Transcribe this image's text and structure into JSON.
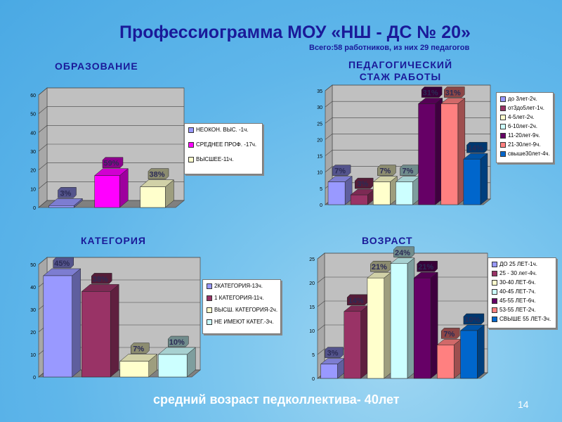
{
  "title": "Профессиограмма МОУ «НШ - ДС № 20»",
  "subtitle": "Всего:58 работников, из них 29 педагогов",
  "footer": "средний возраст педколлектива- 40лет",
  "page_number": "14",
  "chart_data": [
    {
      "id": "education",
      "type": "bar",
      "title": "ОБРАЗОВАНИЕ",
      "categories": [
        "НЕОКОНЧ. ВЫС. -1ч.",
        "СРЕДНЕЕ ПРОФ. -17ч.",
        "ВЫСШЕЕ-11ч."
      ],
      "values": [
        1,
        17,
        11
      ],
      "labels": [
        "3%",
        "59%",
        "38%"
      ],
      "colors": [
        "#9999ff",
        "#ff00ff",
        "#ffffcc"
      ],
      "ylim": [
        0,
        60
      ],
      "yticks": [
        "0",
        "10",
        "20",
        "30",
        "40",
        "50",
        "60"
      ],
      "legend": [
        "НЕОКОН. ВЫС. -1ч.",
        "СРЕДНЕЕ ПРОФ. -17ч.",
        "ВЫСШЕЕ-11ч."
      ],
      "grid": true,
      "legend_position": "right"
    },
    {
      "id": "experience",
      "type": "bar",
      "title": "ПЕДАГОГИЧЕСКИЙ СТАЖ РАБОТЫ",
      "categories": [
        "до 3лет-2ч.",
        "от3до5лет-1ч.",
        "4-5лет-2ч.",
        "6-10лет-2ч.",
        "11-20лет-9ч.",
        "21-30лет-9ч.",
        "свыше30лет-4ч."
      ],
      "values": [
        7,
        3,
        7,
        7,
        31,
        31,
        14
      ],
      "labels": [
        "7%",
        "3%",
        "7%",
        "7%",
        "31%",
        "31%",
        "14%"
      ],
      "colors": [
        "#9999ff",
        "#993366",
        "#ffffcc",
        "#ccffff",
        "#660066",
        "#ff8080",
        "#0066cc"
      ],
      "ylim": [
        0,
        35
      ],
      "yticks": [
        "0",
        "5",
        "10",
        "15",
        "20",
        "25",
        "30",
        "35"
      ],
      "legend": [
        "до 3лет-2ч.",
        "от3до5лет-1ч.",
        "4-5лет-2ч.",
        "6-10лет-2ч.",
        "11-20лет-9ч.",
        "21-30лет-9ч.",
        "свыше30лет-4ч."
      ],
      "grid": true,
      "legend_position": "right"
    },
    {
      "id": "category",
      "type": "bar",
      "title": "КАТЕГОРИЯ",
      "categories": [
        "2КАТЕГОРИЯ-13ч.",
        "1 КАТЕГОРИЯ-11ч.",
        "ВЫСШ. КАТЕГОРИЯ-2ч.",
        "НЕ ИМЕЮТ КАТЕГ.-3ч."
      ],
      "values": [
        45,
        38,
        7,
        10
      ],
      "labels": [
        "45%",
        "38%",
        "7%",
        "10%"
      ],
      "colors": [
        "#9999ff",
        "#993366",
        "#ffffcc",
        "#ccffff"
      ],
      "ylim": [
        0,
        50
      ],
      "yticks": [
        "0",
        "10",
        "20",
        "30",
        "40",
        "50"
      ],
      "legend": [
        "2КАТЕГОРИЯ-13ч.",
        "1 КАТЕГОРИЯ-11ч.",
        "ВЫСШ. КАТЕГОРИЯ-2ч.",
        "НЕ ИМЕЮТ КАТЕГ.-3ч."
      ],
      "grid": true,
      "legend_position": "right"
    },
    {
      "id": "age",
      "type": "bar",
      "title": "ВОЗРАСТ",
      "categories": [
        "ДО 25 ЛЕТ-1ч.",
        "25 - 30 лет-4ч.",
        "30-40 ЛЕТ-6ч.",
        "40-45 ЛЕТ-7ч.",
        "45-55 ЛЕТ-6ч.",
        "53-55 ЛЕТ-2ч.",
        "СВЫШЕ 55 ЛЕТ-3ч."
      ],
      "values": [
        3,
        14,
        21,
        24,
        21,
        7,
        10
      ],
      "labels": [
        "3%",
        "14%",
        "21%",
        "24%",
        "21%",
        "7%",
        "10%"
      ],
      "colors": [
        "#9999ff",
        "#993366",
        "#ffffcc",
        "#ccffff",
        "#660066",
        "#ff8080",
        "#0066cc"
      ],
      "ylim": [
        0,
        25
      ],
      "yticks": [
        "0",
        "5",
        "10",
        "15",
        "20",
        "25"
      ],
      "legend": [
        "ДО 25 ЛЕТ-1ч.",
        "25 - 30 лет-4ч.",
        "30-40 ЛЕТ-6ч.",
        "40-45 ЛЕТ-7ч.",
        "45-55 ЛЕТ-6ч.",
        "53-55 ЛЕТ-2ч.",
        "СВЫШЕ 55 ЛЕТ-3ч."
      ],
      "grid": true,
      "legend_position": "right"
    }
  ]
}
